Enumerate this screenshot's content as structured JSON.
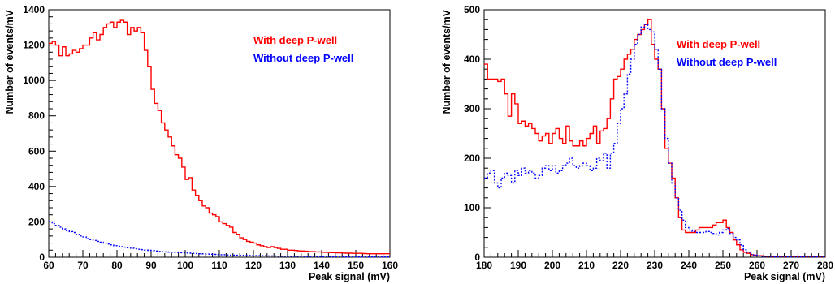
{
  "chart_data": [
    {
      "type": "line",
      "subtype": "step-histogram",
      "xlabel": "Peak signal (mV)",
      "ylabel": "Number of events/mV",
      "xlim": [
        60,
        160
      ],
      "ylim": [
        0,
        1400
      ],
      "x_ticks": [
        60,
        70,
        80,
        90,
        100,
        110,
        120,
        130,
        140,
        150,
        160
      ],
      "y_ticks": [
        0,
        200,
        400,
        600,
        800,
        1000,
        1200,
        1400
      ],
      "bin_width": 1,
      "legend_position": "top-right",
      "series": [
        {
          "name": "With deep P-well",
          "color": "#ff0000",
          "line_style": "solid",
          "values": [
            1210,
            1220,
            1200,
            1140,
            1190,
            1140,
            1150,
            1170,
            1160,
            1180,
            1200,
            1200,
            1240,
            1270,
            1230,
            1260,
            1300,
            1320,
            1330,
            1300,
            1330,
            1340,
            1330,
            1260,
            1300,
            1280,
            1300,
            1270,
            1170,
            1080,
            950,
            870,
            830,
            760,
            720,
            680,
            630,
            580,
            560,
            510,
            440,
            450,
            380,
            350,
            320,
            290,
            280,
            250,
            240,
            230,
            200,
            190,
            180,
            170,
            140,
            130,
            110,
            100,
            90,
            85,
            80,
            70,
            65,
            60,
            55,
            60,
            55,
            50,
            45,
            45,
            40,
            40,
            38,
            36,
            35,
            34,
            32,
            32,
            30,
            30,
            28,
            28,
            27,
            26,
            25,
            25,
            24,
            23,
            23,
            22,
            22,
            22,
            21,
            20,
            20,
            20,
            20,
            20,
            20,
            20
          ]
        },
        {
          "name": "Without deep P-well",
          "color": "#0000ff",
          "line_style": "dotted",
          "values": [
            200,
            190,
            180,
            170,
            160,
            150,
            145,
            140,
            130,
            120,
            115,
            105,
            100,
            95,
            90,
            85,
            80,
            75,
            70,
            65,
            62,
            60,
            57,
            54,
            51,
            48,
            45,
            43,
            41,
            39,
            37,
            35,
            33,
            31,
            30,
            29,
            28,
            27,
            26,
            25,
            24,
            23,
            22,
            21,
            20,
            19,
            18,
            17,
            16,
            15,
            14,
            14,
            13,
            12,
            12,
            11,
            11,
            10,
            10,
            9,
            9,
            8,
            8,
            8,
            7,
            7,
            7,
            6,
            6,
            6,
            5,
            5,
            5,
            5,
            5,
            4,
            4,
            4,
            4,
            4,
            3,
            3,
            3,
            3,
            3,
            3,
            3,
            2,
            2,
            2,
            2,
            2,
            2,
            2,
            2,
            2,
            2,
            2,
            2,
            2
          ]
        }
      ]
    },
    {
      "type": "line",
      "subtype": "step-histogram",
      "xlabel": "Peak signal (mV)",
      "ylabel": "Number of events/mV",
      "xlim": [
        180,
        280
      ],
      "ylim": [
        0,
        500
      ],
      "x_ticks": [
        180,
        190,
        200,
        210,
        220,
        230,
        240,
        250,
        260,
        270,
        280
      ],
      "y_ticks": [
        0,
        100,
        200,
        300,
        400,
        500
      ],
      "bin_width": 1,
      "legend_position": "top-right",
      "series": [
        {
          "name": "With deep P-well",
          "color": "#ff0000",
          "line_style": "solid",
          "values": [
            390,
            360,
            360,
            360,
            355,
            360,
            330,
            285,
            330,
            310,
            270,
            275,
            265,
            270,
            260,
            250,
            235,
            245,
            250,
            230,
            250,
            260,
            240,
            230,
            265,
            235,
            225,
            225,
            235,
            225,
            240,
            250,
            265,
            230,
            255,
            260,
            280,
            320,
            360,
            365,
            380,
            400,
            410,
            420,
            440,
            450,
            460,
            470,
            480,
            430,
            400,
            380,
            300,
            220,
            190,
            160,
            120,
            80,
            55,
            50,
            50,
            50,
            55,
            60,
            60,
            60,
            60,
            65,
            70,
            70,
            75,
            60,
            50,
            35,
            25,
            15,
            10,
            8,
            5,
            4,
            3,
            3,
            2,
            2,
            2,
            2,
            2,
            2,
            2,
            2,
            2,
            2,
            2,
            2,
            2,
            2,
            2,
            2,
            2,
            2
          ]
        },
        {
          "name": "Without deep P-well",
          "color": "#0000ff",
          "line_style": "dotted",
          "values": [
            160,
            170,
            175,
            150,
            140,
            160,
            170,
            165,
            150,
            175,
            165,
            180,
            170,
            175,
            170,
            160,
            165,
            180,
            185,
            175,
            185,
            170,
            175,
            185,
            190,
            200,
            185,
            180,
            185,
            190,
            185,
            175,
            180,
            200,
            195,
            210,
            180,
            210,
            230,
            270,
            300,
            330,
            370,
            400,
            430,
            450,
            465,
            470,
            460,
            455,
            420,
            380,
            300,
            240,
            190,
            150,
            120,
            95,
            75,
            60,
            55,
            52,
            50,
            50,
            50,
            52,
            50,
            48,
            45,
            50,
            55,
            58,
            48,
            40,
            35,
            25,
            15,
            10,
            6,
            4,
            3,
            2,
            2,
            2,
            1,
            1,
            1,
            1,
            1,
            1,
            1,
            1,
            1,
            1,
            1,
            1,
            1,
            1,
            1,
            1
          ]
        }
      ]
    }
  ]
}
